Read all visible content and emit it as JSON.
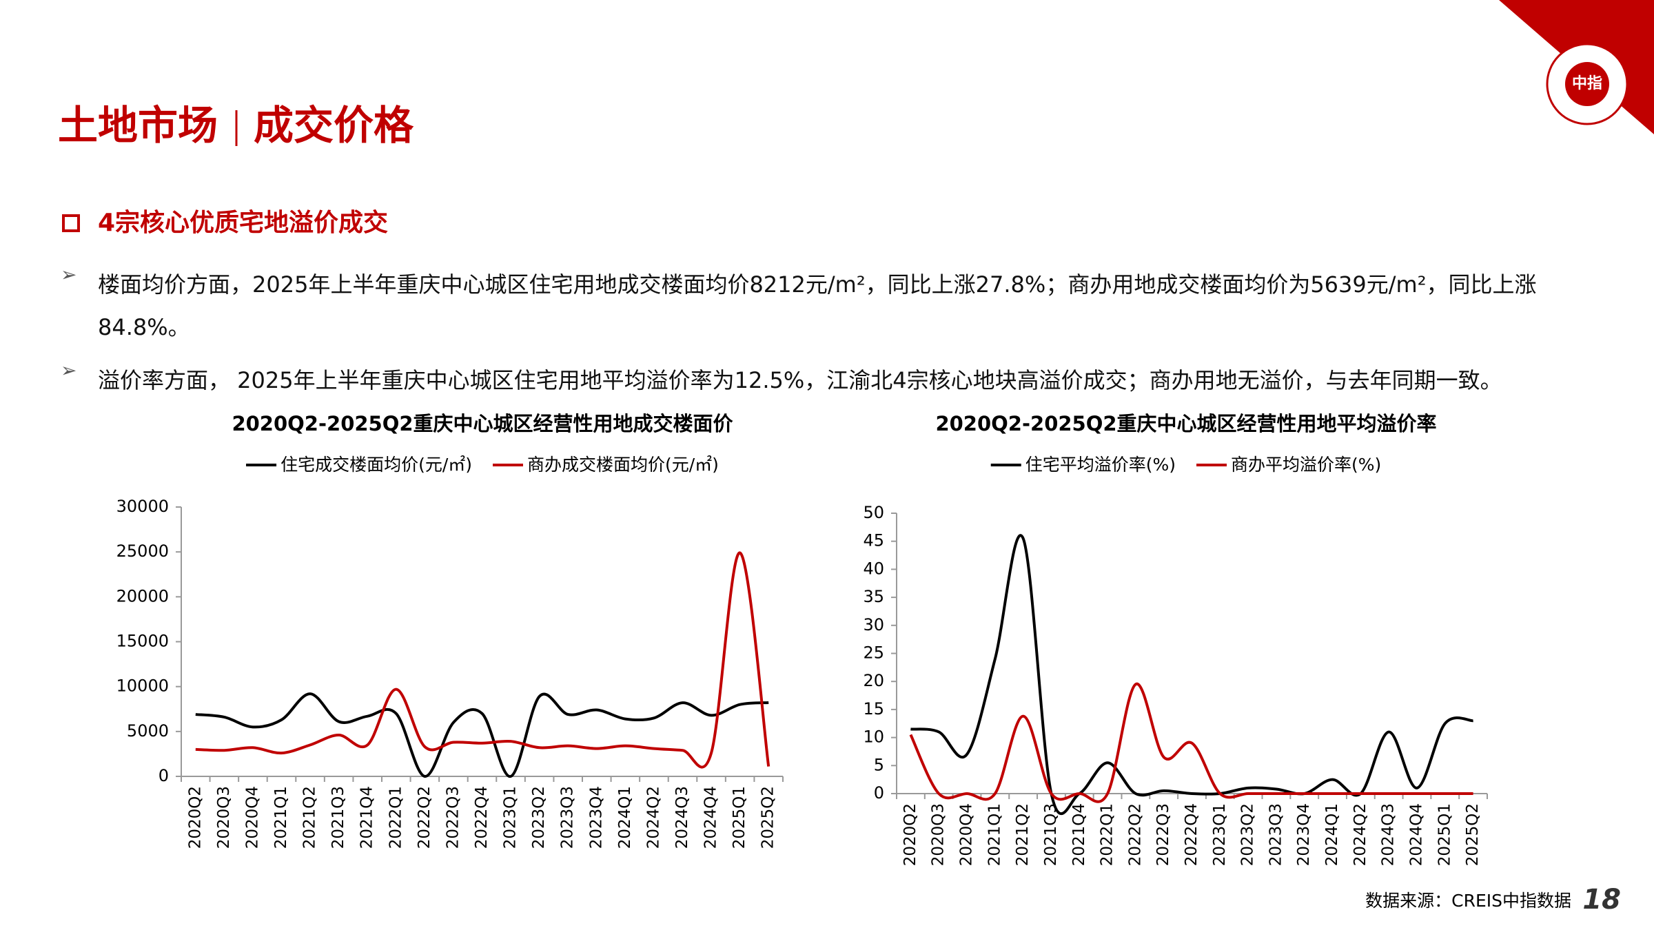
{
  "logo": "中指",
  "header": {
    "title": "土地市场",
    "subtitle": "成交价格"
  },
  "section": "4宗核心优质宅地溢价成交",
  "bullets": [
    "楼面均价方面，2025年上半年重庆中心城区住宅用地成交楼面均价8212元/m²，同比上涨27.8%；商办用地成交楼面均价为5639元/m²，同比上涨84.8%。",
    "溢价率方面， 2025年上半年重庆中心城区住宅用地平均溢价率为12.5%，江渝北4宗核心地块高溢价成交；商办用地无溢价，与去年同期一致。"
  ],
  "source": "数据来源：CREIS中指数据",
  "page_number": 18,
  "chart_data": [
    {
      "type": "line",
      "title": "2020Q2-2025Q2重庆中心城区经营性用地成交楼面价",
      "categories": [
        "2020Q2",
        "2020Q3",
        "2020Q4",
        "2021Q1",
        "2021Q2",
        "2021Q3",
        "2021Q4",
        "2022Q1",
        "2022Q2",
        "2022Q3",
        "2022Q4",
        "2023Q1",
        "2023Q2",
        "2023Q3",
        "2023Q4",
        "2024Q1",
        "2024Q2",
        "2024Q3",
        "2024Q4",
        "2025Q1",
        "2025Q2"
      ],
      "series": [
        {
          "name": "住宅成交楼面均价(元/㎡)",
          "color": "#000000",
          "values": [
            6900,
            6600,
            5500,
            6300,
            9200,
            6100,
            6700,
            7000,
            0,
            6000,
            7000,
            0,
            8900,
            6900,
            7400,
            6400,
            6500,
            8200,
            6800,
            8000,
            8212
          ]
        },
        {
          "name": "商办成交楼面均价(元/㎡)",
          "color": "#c00000",
          "values": [
            3000,
            2900,
            3200,
            2600,
            3500,
            4600,
            3500,
            9700,
            3300,
            3800,
            3700,
            3900,
            3200,
            3400,
            3100,
            3400,
            3100,
            2900,
            2600,
            24900,
            1100
          ]
        }
      ],
      "ylim": [
        0,
        30000
      ],
      "yticks": [
        0,
        5000,
        10000,
        15000,
        20000,
        25000,
        30000
      ],
      "smooth": true
    },
    {
      "type": "line",
      "title": "2020Q2-2025Q2重庆中心城区经营性用地平均溢价率",
      "categories": [
        "2020Q2",
        "2020Q3",
        "2020Q4",
        "2021Q1",
        "2021Q2",
        "2021Q3",
        "2021Q4",
        "2022Q1",
        "2022Q2",
        "2022Q3",
        "2022Q4",
        "2023Q1",
        "2023Q2",
        "2023Q3",
        "2023Q4",
        "2024Q1",
        "2024Q2",
        "2024Q3",
        "2024Q4",
        "2025Q1",
        "2025Q2"
      ],
      "series": [
        {
          "name": "住宅平均溢价率(%)",
          "color": "#000000",
          "values": [
            11.5,
            11,
            7,
            24,
            45.5,
            0,
            0,
            5.5,
            0,
            0.5,
            0,
            0,
            1,
            0.8,
            0,
            2.5,
            0,
            11,
            1,
            12.5,
            13
          ]
        },
        {
          "name": "商办平均溢价率(%)",
          "color": "#c00000",
          "values": [
            10.5,
            0,
            0,
            0,
            13.8,
            0,
            0,
            0,
            19.5,
            6.5,
            9,
            0,
            0,
            0,
            0,
            0,
            0,
            0,
            0,
            0,
            0
          ]
        }
      ],
      "ylim": [
        0,
        50
      ],
      "yticks": [
        0,
        5,
        10,
        15,
        20,
        25,
        30,
        35,
        40,
        45,
        50
      ],
      "smooth": true
    }
  ]
}
